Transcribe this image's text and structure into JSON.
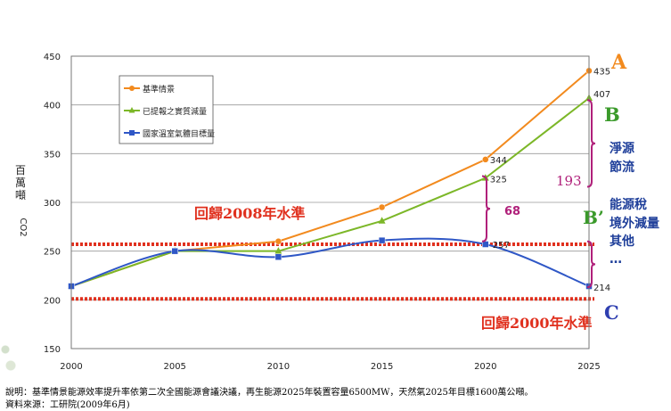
{
  "chart_data": {
    "type": "line",
    "x": [
      2000,
      2005,
      2010,
      2015,
      2020,
      2025
    ],
    "ylim": [
      150,
      450
    ],
    "ylabel": "百萬噸CO2",
    "yticks": [
      150,
      200,
      250,
      300,
      350,
      400,
      450
    ],
    "xticks": [
      2000,
      2005,
      2010,
      2015,
      2020,
      2025
    ],
    "grid": "horizontal",
    "legend_position": "top-left",
    "series": [
      {
        "name": "基準情景",
        "color": "#f28a1e",
        "marker": "circle",
        "values": [
          214,
          250,
          260,
          295,
          344,
          435
        ]
      },
      {
        "name": "已提報之實質減量",
        "color": "#7cb728",
        "marker": "triangle",
        "values": [
          214,
          250,
          250,
          281,
          325,
          407
        ]
      },
      {
        "name": "國家溫室氣體目標量",
        "color": "#2f57c6",
        "marker": "square",
        "values": [
          214,
          250,
          244,
          261,
          257,
          214
        ]
      }
    ],
    "data_labels": {
      "s0_2025": "435",
      "s1_2025": "407",
      "s1_2020": "325",
      "s0_2020": "344",
      "s2_2020": "257",
      "s2_2025": "214"
    },
    "reference_lines": [
      {
        "label": "回歸2008年水準",
        "y": 257,
        "color": "#e0301e"
      },
      {
        "label": "回歸2000年水準",
        "y": 201,
        "color": "#e0301e"
      }
    ],
    "annotations": {
      "gap_68": "68",
      "gap_193": "193",
      "letter_A": "A",
      "letter_B": "B",
      "letter_Bp": "B’",
      "letter_C": "C",
      "side_text_1": "淨源",
      "side_text_2": "節流",
      "side_text_3": "能源稅",
      "side_text_4": "境外減量",
      "side_text_5": "其他",
      "side_text_6": "…"
    }
  },
  "notes": {
    "line1": "說明：基準情景能源效率提升率依第二次全國能源會議決議，再生能源2025年裝置容量6500MW，天然氣2025年目標1600萬公噸。",
    "line2": "資料來源：工研院(2009年6月)"
  },
  "colors": {
    "red": "#e0301e",
    "purple": "#b0207a",
    "letter_A": "#f28a1e",
    "letter_B": "#3a9a2a",
    "letter_C": "#2f3fb0",
    "side_text": "#1f3f9a"
  }
}
